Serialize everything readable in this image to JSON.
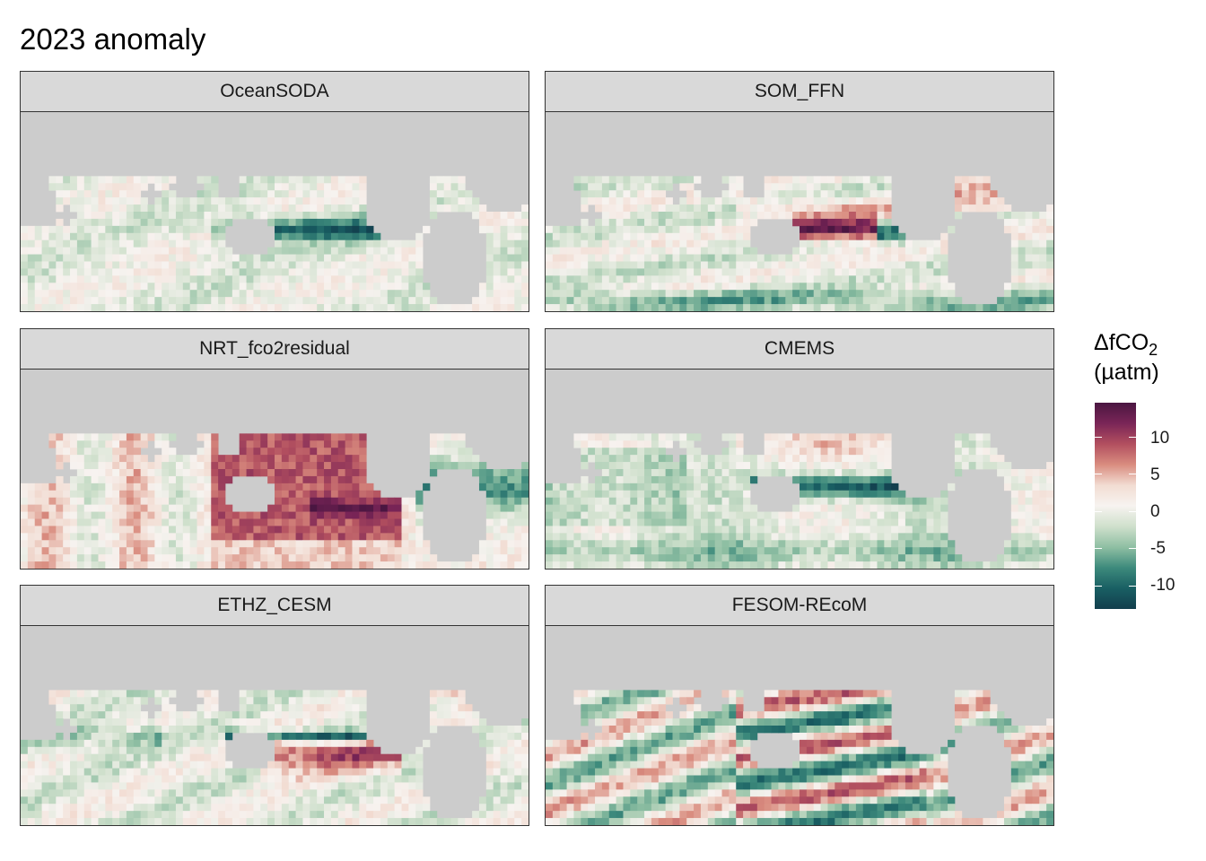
{
  "figure": {
    "title": "2023 anomaly"
  },
  "panels": [
    {
      "label": "OceanSODA",
      "pattern": "equatorial-negative"
    },
    {
      "label": "SOM_FFN",
      "pattern": "mixed-positive-core"
    },
    {
      "label": "NRT_fco2residual",
      "pattern": "broad-positive"
    },
    {
      "label": "CMEMS",
      "pattern": "equatorial-negative-weak"
    },
    {
      "label": "ETHZ_CESM",
      "pattern": "banded-positive"
    },
    {
      "label": "FESOM-REcoM",
      "pattern": "strong-banded"
    }
  ],
  "legend": {
    "title_main": "ΔfCO",
    "title_sub": "2",
    "unit": "(µatm)",
    "ticks": [
      "10",
      "5",
      "0",
      "-5",
      "-10"
    ],
    "colors": [
      "#4a1641",
      "#7a2557",
      "#b24f5f",
      "#d98c7f",
      "#f2dcd2",
      "#f7f3f0",
      "#cfe0cc",
      "#8fbfa3",
      "#3d8a7c",
      "#195f63",
      "#123e4d"
    ]
  },
  "chart_data": {
    "type": "heatmap",
    "title": "2023 anomaly",
    "facets": [
      "OceanSODA",
      "SOM_FFN",
      "NRT_fco2residual",
      "CMEMS",
      "ETHZ_CESM",
      "FESOM-REcoM"
    ],
    "legend_title": "ΔfCO2 (µatm)",
    "value_range": [
      -13,
      15
    ],
    "colorbar_ticks": [
      10,
      5,
      0,
      -5,
      -10
    ],
    "land_color": "#cccccc"
  }
}
